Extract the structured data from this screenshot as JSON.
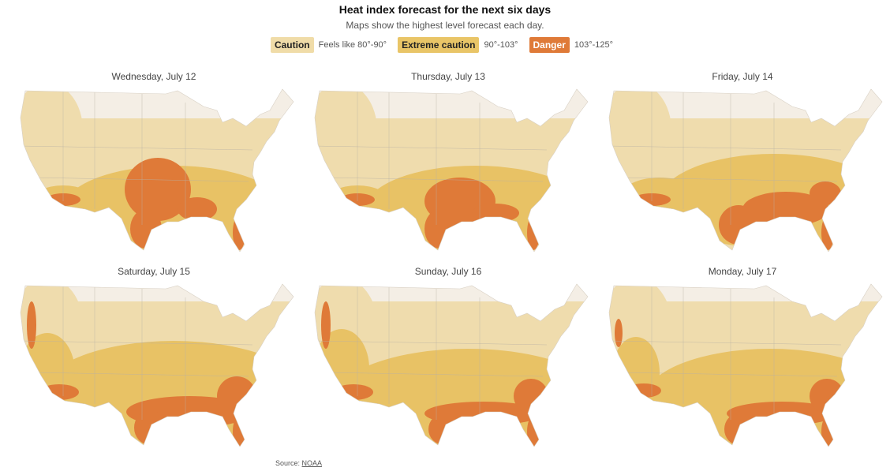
{
  "header": {
    "title": "Heat index forecast for the next six days",
    "subtitle": "Maps show the highest level forecast each day."
  },
  "legend": [
    {
      "label": "Caution",
      "range": "Feels like 80°-90°"
    },
    {
      "label": "Extreme caution",
      "range": "90°-103°"
    },
    {
      "label": "Danger",
      "range": "103°-125°"
    }
  ],
  "maps": [
    {
      "title": "Wednesday, July 12"
    },
    {
      "title": "Thursday, July 13"
    },
    {
      "title": "Friday, July 14"
    },
    {
      "title": "Saturday, July 15"
    },
    {
      "title": "Sunday, July 16"
    },
    {
      "title": "Monday, July 17"
    }
  ],
  "source": {
    "label": "Source:",
    "link": "NOAA"
  }
}
